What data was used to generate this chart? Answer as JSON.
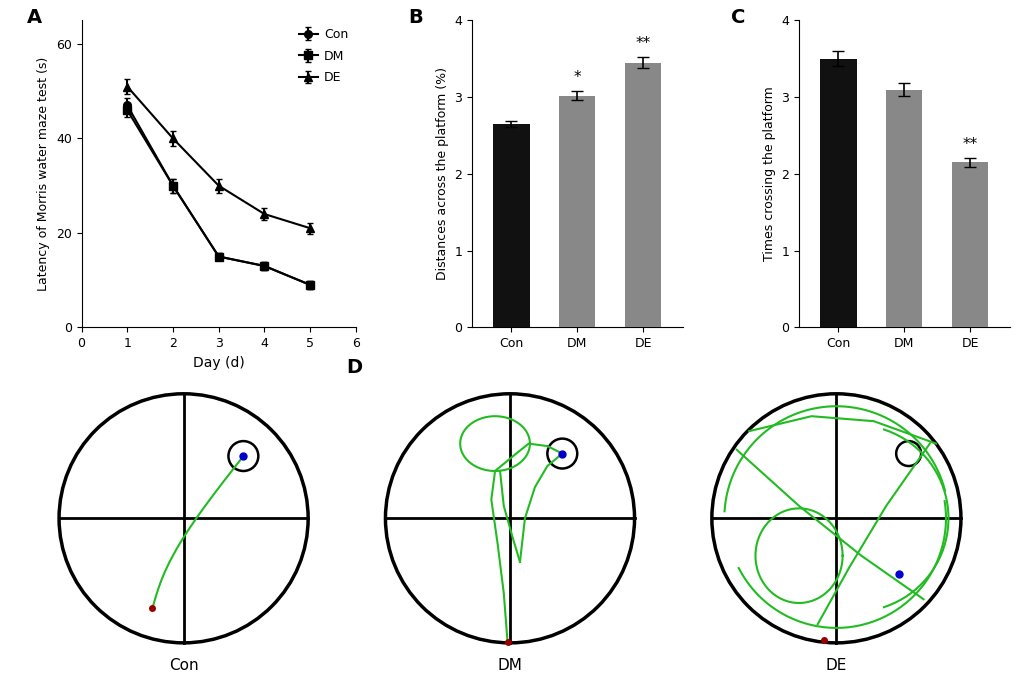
{
  "panel_A": {
    "days": [
      1,
      2,
      3,
      4,
      5
    ],
    "con": [
      47,
      30,
      15,
      13,
      9
    ],
    "dm": [
      46,
      30,
      15,
      13,
      9
    ],
    "de": [
      51,
      40,
      30,
      24,
      21
    ],
    "con_err": [
      1.5,
      1.5,
      0.8,
      0.8,
      0.8
    ],
    "dm_err": [
      1.5,
      1.5,
      0.8,
      0.8,
      0.8
    ],
    "de_err": [
      1.5,
      1.5,
      1.5,
      1.2,
      1.2
    ],
    "xlabel": "Day (d)",
    "ylabel": "Latency of Morris water maze test (s)",
    "xlim": [
      0,
      6
    ],
    "ylim": [
      0,
      65
    ],
    "yticks": [
      0,
      20,
      40,
      60
    ]
  },
  "panel_B": {
    "categories": [
      "Con",
      "DM",
      "DE"
    ],
    "values": [
      2.65,
      3.02,
      3.45
    ],
    "errors": [
      0.04,
      0.06,
      0.07
    ],
    "colors": [
      "#111111",
      "#888888",
      "#888888"
    ],
    "ylabel": "Distances across the platform (%)",
    "ylim": [
      0,
      4
    ],
    "yticks": [
      0,
      1,
      2,
      3,
      4
    ],
    "sig_labels": [
      "",
      "*",
      "**"
    ]
  },
  "panel_C": {
    "categories": [
      "Con",
      "DM",
      "DE"
    ],
    "values": [
      3.5,
      3.1,
      2.15
    ],
    "errors": [
      0.1,
      0.08,
      0.06
    ],
    "colors": [
      "#111111",
      "#888888",
      "#888888"
    ],
    "ylabel": "Times crossing the platform",
    "ylim": [
      0,
      4
    ],
    "yticks": [
      0,
      1,
      2,
      3,
      4
    ],
    "sig_labels": [
      "",
      "",
      "**"
    ]
  },
  "colors": {
    "green_path": "#22bb22",
    "blue_dot": "#0000cc",
    "red_dot": "#990000"
  }
}
